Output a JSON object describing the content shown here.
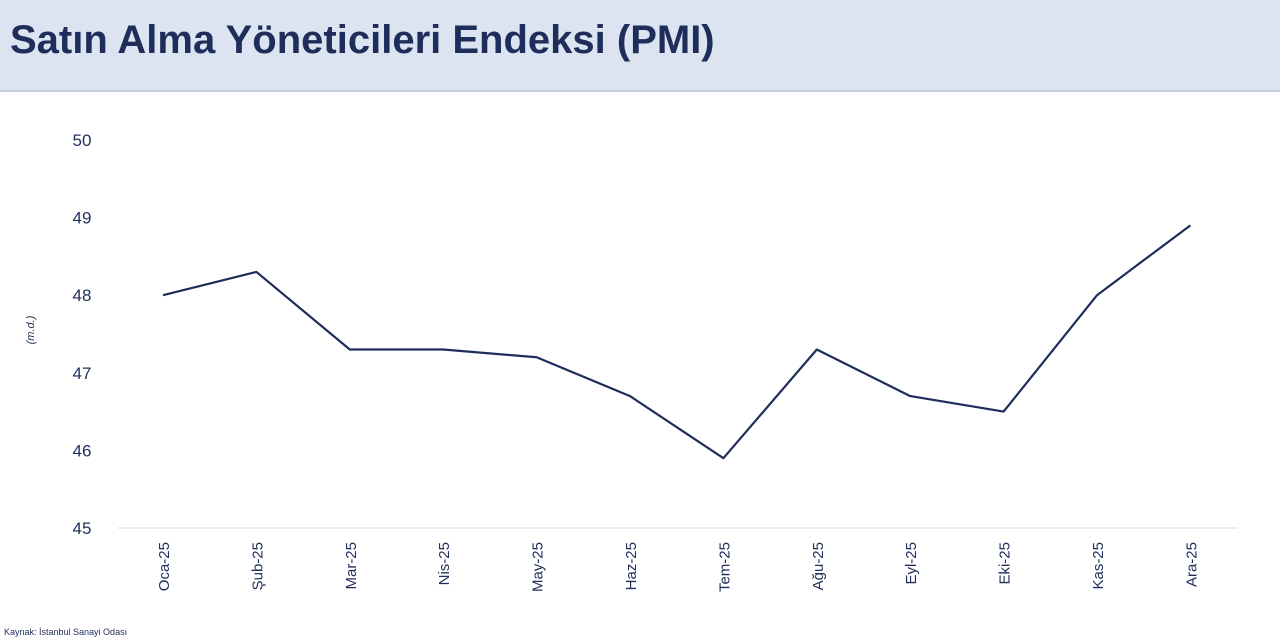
{
  "header": {
    "title": "Satın Alma Yöneticileri Endeksi (PMI)"
  },
  "source": "Kaynak: İstanbul Sanayi Odası",
  "chart_data": {
    "type": "line",
    "title": "",
    "ylabel": "(m.d.)",
    "xlabel": "",
    "ylim": [
      45,
      50
    ],
    "yticks": [
      45,
      46,
      47,
      48,
      49,
      50
    ],
    "grid": false,
    "categories": [
      "Oca-25",
      "Şub-25",
      "Mar-25",
      "Nis-25",
      "May-25",
      "Haz-25",
      "Tem-25",
      "Ağu-25",
      "Eyl-25",
      "Eki-25",
      "Kas-25",
      "Ara-25"
    ],
    "values": [
      48.0,
      48.3,
      47.3,
      47.3,
      47.2,
      46.7,
      45.9,
      47.3,
      46.7,
      46.5,
      48.0,
      48.9
    ],
    "line_color": "#1f2d5a"
  }
}
